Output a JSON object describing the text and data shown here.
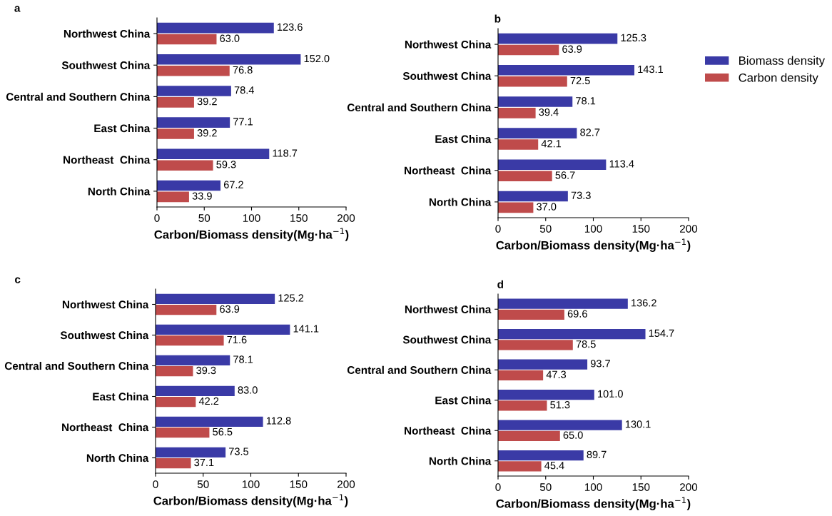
{
  "chart_data": [
    {
      "type": "bar",
      "orientation": "horizontal",
      "title": "a",
      "xlabel": "Carbon/Biomass density(Mg·ha$^{−1}$)",
      "categories": [
        "Northwest China",
        "Southwest China",
        "Central and Southern China",
        "East China",
        "Northeast  China",
        "North China"
      ],
      "xlim": [
        0,
        200
      ],
      "xticks": [
        0,
        50,
        100,
        150,
        200
      ],
      "grid": false,
      "legend": false,
      "series": [
        {
          "color": "#3a3aa6",
          "values": [
            123.6,
            152,
            78.4,
            77.1,
            118.7,
            67.2
          ],
          "value_labels": [
            "123.6",
            "152.0",
            "78.4",
            "77.1",
            "118.7",
            "67.2"
          ]
        },
        {
          "color": "#bf4b4b",
          "values": [
            63,
            76.8,
            39.2,
            39.2,
            59.3,
            33.9
          ],
          "value_labels": [
            "63.0",
            "76.8",
            "39.2",
            "39.2",
            "59.3",
            "33.9"
          ]
        }
      ]
    },
    {
      "type": "bar",
      "orientation": "horizontal",
      "title": "b",
      "xlabel": "Carbon/Biomass density(Mg·ha$^{−1}$)",
      "categories": [
        "Northwest China",
        "Southwest China",
        "Central and Southern China",
        "East China",
        "Northeast  China",
        "North China"
      ],
      "xlim": [
        0,
        200
      ],
      "xticks": [
        0,
        50,
        100,
        150,
        200
      ],
      "grid": false,
      "legend": "right",
      "series": [
        {
          "name": "Biomass density",
          "color": "#3a3aa6",
          "values": [
            125.3,
            143.1,
            78.1,
            82.7,
            113.4,
            73.3
          ],
          "value_labels": [
            "125.3",
            "143.1",
            "78.1",
            "82.7",
            "113.4",
            "73.3"
          ]
        },
        {
          "name": "Carbon density",
          "color": "#bf4b4b",
          "values": [
            63.9,
            72.5,
            39.4,
            42.1,
            56.7,
            37
          ],
          "value_labels": [
            "63.9",
            "72.5",
            "39.4",
            "42.1",
            "56.7",
            "37.0"
          ]
        }
      ]
    },
    {
      "type": "bar",
      "orientation": "horizontal",
      "title": "c",
      "xlabel": "Carbon/Biomass density(Mg·ha$^{−1}$)",
      "categories": [
        "Northwest China",
        "Southwest China",
        "Central and Southern China",
        "East China",
        "Northeast  China",
        "North China"
      ],
      "xlim": [
        0,
        200
      ],
      "xticks": [
        0,
        50,
        100,
        150,
        200
      ],
      "grid": false,
      "legend": false,
      "series": [
        {
          "color": "#3a3aa6",
          "values": [
            125.2,
            141.1,
            78.1,
            83,
            112.8,
            73.5
          ],
          "value_labels": [
            "125.2",
            "141.1",
            "78.1",
            "83.0",
            "112.8",
            "73.5"
          ]
        },
        {
          "color": "#bf4b4b",
          "values": [
            63.9,
            71.6,
            39.3,
            42.2,
            56.5,
            37.1
          ],
          "value_labels": [
            "63.9",
            "71.6",
            "39.3",
            "42.2",
            "56.5",
            "37.1"
          ]
        }
      ]
    },
    {
      "type": "bar",
      "orientation": "horizontal",
      "title": "d",
      "xlabel": "Carbon/Biomass density(Mg·ha$^{−1}$)",
      "categories": [
        "Northwest China",
        "Southwest China",
        "Central and Southern China",
        "East China",
        "Northeast  China",
        "North China"
      ],
      "xlim": [
        0,
        200
      ],
      "xticks": [
        0,
        50,
        100,
        150,
        200
      ],
      "grid": false,
      "legend": false,
      "series": [
        {
          "color": "#3a3aa6",
          "values": [
            136.2,
            154.7,
            93.7,
            101,
            130.1,
            89.7
          ],
          "value_labels": [
            "136.2",
            "154.7",
            "93.7",
            "101.0",
            "130.1",
            "89.7"
          ]
        },
        {
          "color": "#bf4b4b",
          "values": [
            69.6,
            78.5,
            47.3,
            51.3,
            65,
            45.4
          ],
          "value_labels": [
            "69.6",
            "78.5",
            "47.3",
            "51.3",
            "65.0",
            "45.4"
          ]
        }
      ]
    }
  ]
}
